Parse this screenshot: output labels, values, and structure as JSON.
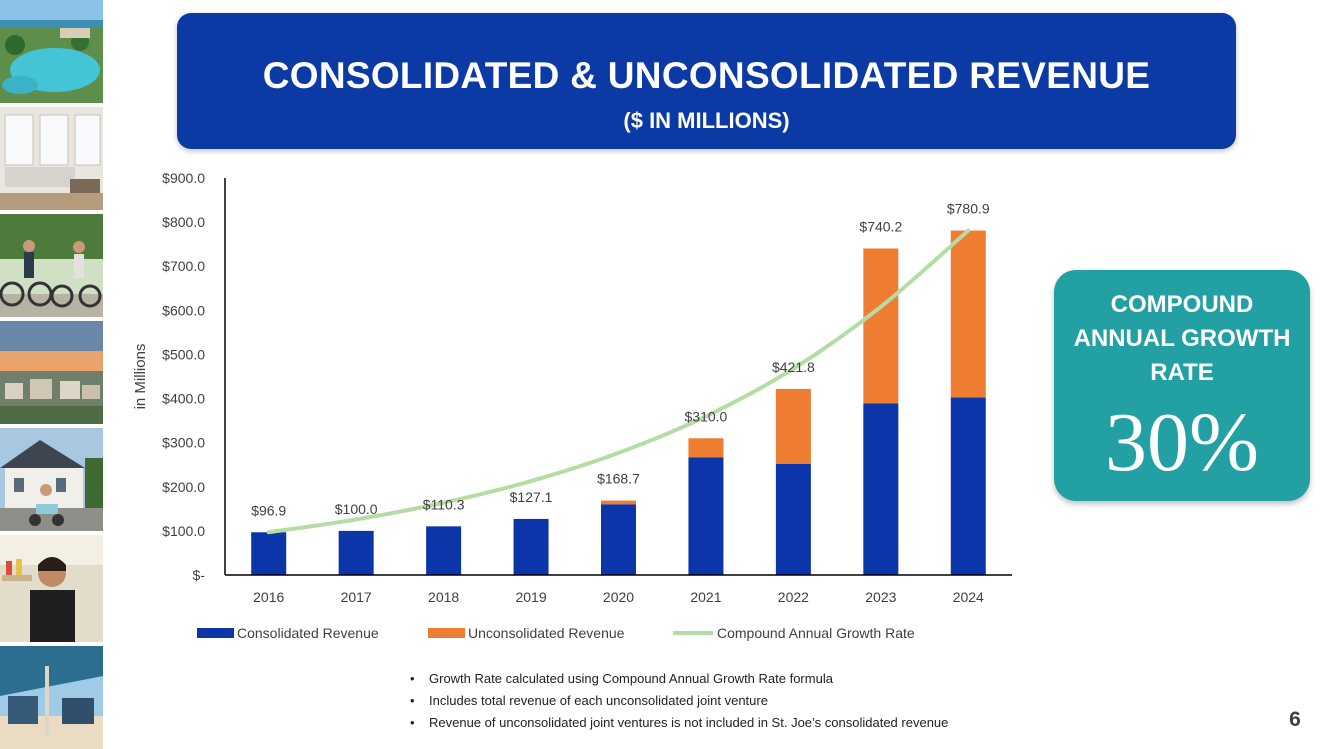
{
  "header": {
    "title": "CONSOLIDATED & UNCONSOLIDATED REVENUE",
    "subtitle": "($ IN MILLIONS)"
  },
  "chart_data": {
    "type": "bar",
    "stacked": true,
    "categories": [
      "2016",
      "2017",
      "2018",
      "2019",
      "2020",
      "2021",
      "2022",
      "2023",
      "2024"
    ],
    "series": [
      {
        "name": "Consolidated Revenue",
        "kind": "bar",
        "color": "#0b35a8",
        "values": [
          96.9,
          100.0,
          110.3,
          127.1,
          160.4,
          267.0,
          252.3,
          389.3,
          402.3
        ]
      },
      {
        "name": "Unconsolidated Revenue",
        "kind": "bar",
        "color": "#ee7d31",
        "values": [
          0,
          0,
          0,
          0,
          8.3,
          43.0,
          169.5,
          350.9,
          378.6
        ]
      },
      {
        "name": "Compound Annual Growth Rate",
        "kind": "line",
        "color": "#b5dca5",
        "values": [
          96.9,
          126.0,
          163.8,
          212.9,
          276.8,
          359.8,
          467.7,
          608.0,
          780.9
        ]
      }
    ],
    "totals": [
      96.9,
      100.0,
      110.3,
      127.1,
      168.7,
      310.0,
      421.8,
      740.2,
      780.9
    ],
    "data_labels": [
      "$96.9",
      "$100.0",
      "$110.3",
      "$127.1",
      "$168.7",
      "$310.0",
      "$421.8",
      "$740.2",
      "$780.9"
    ],
    "y_ticks": [
      0,
      100,
      200,
      300,
      400,
      500,
      600,
      700,
      800,
      900
    ],
    "y_tick_labels": [
      "$-",
      "$100.0",
      "$200.0",
      "$300.0",
      "$400.0",
      "$500.0",
      "$600.0",
      "$700.0",
      "$800.0",
      "$900.0"
    ],
    "ylim": [
      0,
      900
    ],
    "xlabel": "",
    "ylabel": "in Millions",
    "grid": false,
    "legend_position": "bottom"
  },
  "cagr_box": {
    "label": "COMPOUND ANNUAL GROWTH RATE",
    "value": "30%"
  },
  "notes": [
    "Growth Rate calculated using Compound Annual Growth Rate formula",
    "Includes total revenue of each unconsolidated joint venture",
    "Revenue of unconsolidated joint ventures is not included in St. Joe’s consolidated revenue"
  ],
  "bullet_glyph": "•",
  "page_number": "6"
}
